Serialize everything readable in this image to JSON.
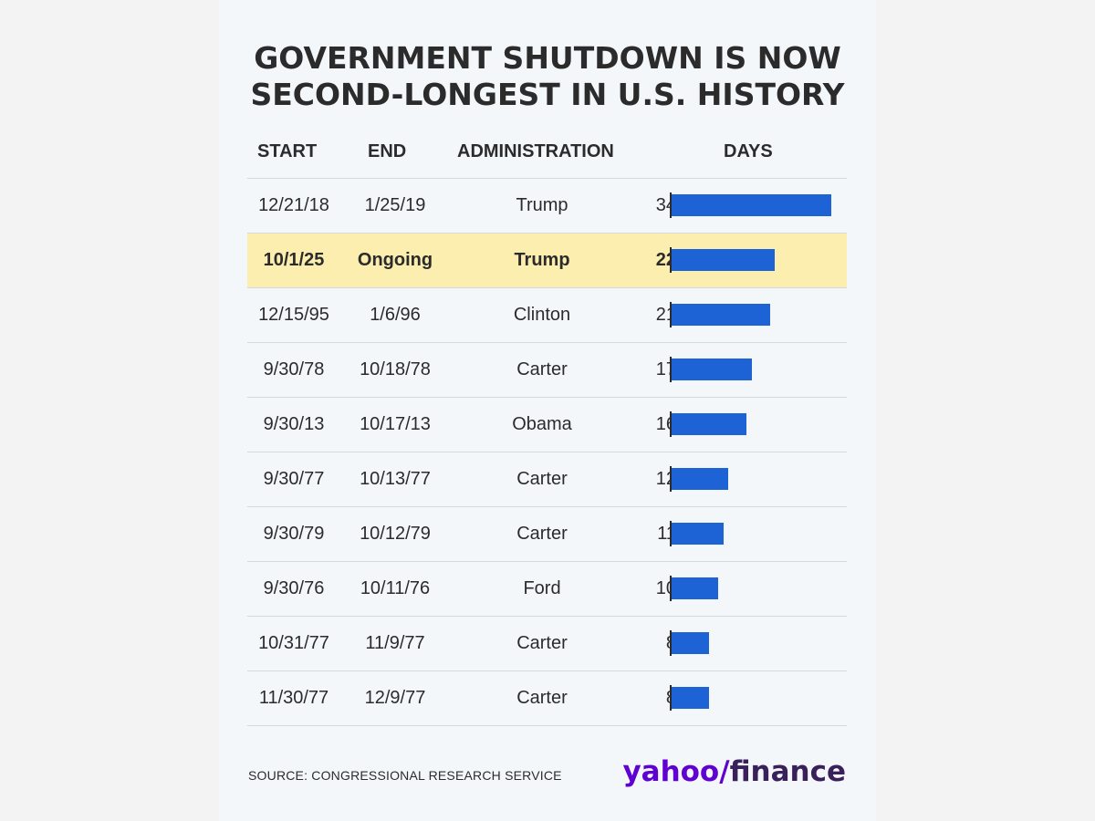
{
  "title_line1": "GOVERNMENT SHUTDOWN IS NOW",
  "title_line2": "SECOND-LONGEST IN U.S. HISTORY",
  "headers": {
    "start": "START",
    "end": "END",
    "administration": "ADMINISTRATION",
    "days": "DAYS"
  },
  "rows": [
    {
      "start": "12/21/18",
      "end": "1/25/19",
      "administration": "Trump",
      "days": "34",
      "highlight": false
    },
    {
      "start": "10/1/25",
      "end": "Ongoing",
      "administration": "Trump",
      "days": "22",
      "highlight": true
    },
    {
      "start": "12/15/95",
      "end": "1/6/96",
      "administration": "Clinton",
      "days": "21",
      "highlight": false
    },
    {
      "start": "9/30/78",
      "end": "10/18/78",
      "administration": "Carter",
      "days": "17",
      "highlight": false
    },
    {
      "start": "9/30/13",
      "end": "10/17/13",
      "administration": "Obama",
      "days": "16",
      "highlight": false
    },
    {
      "start": "9/30/77",
      "end": "10/13/77",
      "administration": "Carter",
      "days": "12",
      "highlight": false
    },
    {
      "start": "9/30/79",
      "end": "10/12/79",
      "administration": "Carter",
      "days": "11",
      "highlight": false
    },
    {
      "start": "9/30/76",
      "end": "10/11/76",
      "administration": "Ford",
      "days": "10",
      "highlight": false
    },
    {
      "start": "10/31/77",
      "end": "11/9/77",
      "administration": "Carter",
      "days": "8",
      "highlight": false
    },
    {
      "start": "11/30/77",
      "end": "12/9/77",
      "administration": "Carter",
      "days": "8",
      "highlight": false
    }
  ],
  "source": "SOURCE: CONGRESSIONAL RESEARCH SERVICE",
  "logo": {
    "yahoo": "yahoo",
    "slash": "/",
    "finance": "finance"
  },
  "colors": {
    "bar": "#1e63d6",
    "highlight": "#fbeeae",
    "logo_yahoo": "#5f01d1",
    "logo_finance": "#39205b"
  },
  "chart_data": {
    "type": "bar",
    "orientation": "horizontal",
    "title": "GOVERNMENT SHUTDOWN IS NOW SECOND-LONGEST IN U.S. HISTORY",
    "categories": [
      "12/21/18",
      "10/1/25",
      "12/15/95",
      "9/30/78",
      "9/30/13",
      "9/30/77",
      "9/30/79",
      "9/30/76",
      "10/31/77",
      "11/30/77"
    ],
    "values": [
      34,
      22,
      21,
      17,
      16,
      12,
      11,
      10,
      8,
      8
    ],
    "xlabel": "DAYS",
    "ylabel": "",
    "xlim": [
      0,
      34
    ]
  }
}
